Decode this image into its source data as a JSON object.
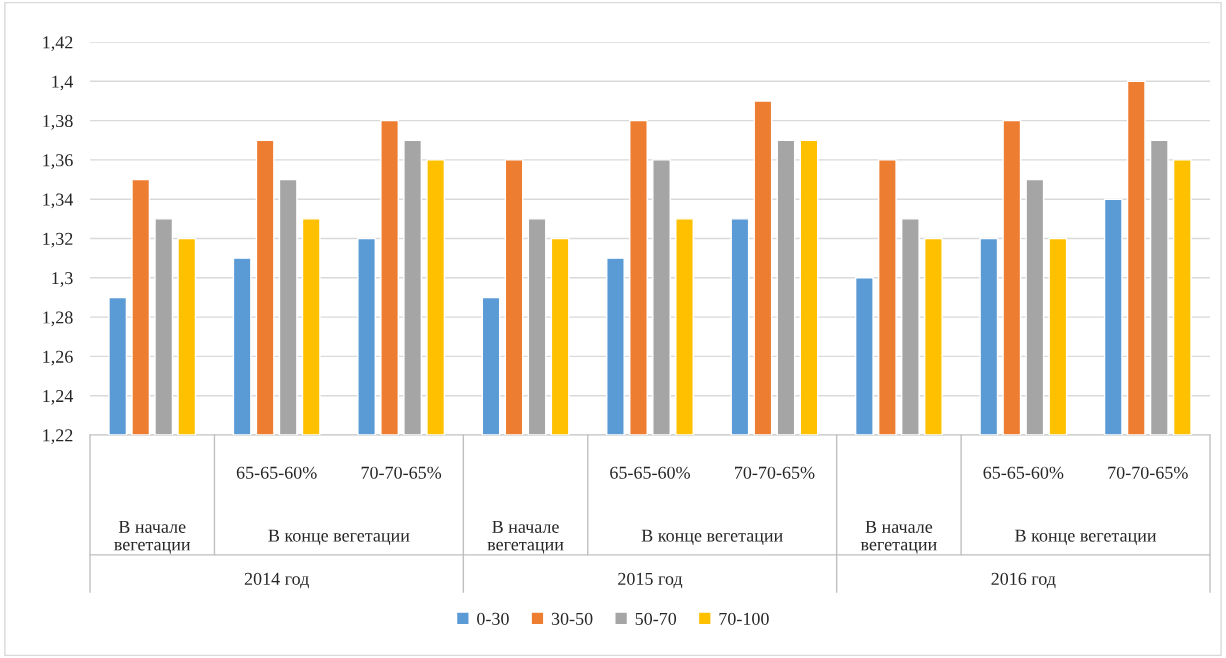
{
  "chart_data": {
    "type": "bar",
    "categories": [
      null,
      "65-65-60%",
      "70-70-65%",
      null,
      "65-65-60%",
      "70-70-65%",
      null,
      "65-65-60%",
      "70-70-65%"
    ],
    "series": [
      {
        "name": "0-30",
        "color": "#5b9bd5",
        "values": [
          1.29,
          1.31,
          1.32,
          1.29,
          1.31,
          1.33,
          1.3,
          1.32,
          1.34
        ]
      },
      {
        "name": "30-50",
        "color": "#ed7d31",
        "values": [
          1.35,
          1.37,
          1.38,
          1.36,
          1.38,
          1.39,
          1.36,
          1.38,
          1.4
        ]
      },
      {
        "name": "50-70",
        "color": "#a5a5a5",
        "values": [
          1.33,
          1.35,
          1.37,
          1.33,
          1.36,
          1.37,
          1.33,
          1.35,
          1.37
        ]
      },
      {
        "name": "70-100",
        "color": "#ffc000",
        "values": [
          1.32,
          1.33,
          1.36,
          1.32,
          1.33,
          1.37,
          1.32,
          1.32,
          1.36
        ]
      }
    ],
    "annotations": [
      "В начале\nвегетации",
      "В конце вегетации",
      "2014 год",
      "В начале\nвегетации",
      "В конце вегетации",
      "2015 год",
      "В начале\nвегетации",
      "В конце вегетации",
      "2016 год"
    ],
    "ylim": [
      1.22,
      1.42
    ],
    "yticks": [
      {
        "value": 1.22,
        "label": "1,22"
      },
      {
        "value": 1.24,
        "label": "1,24"
      },
      {
        "value": 1.26,
        "label": "1,26"
      },
      {
        "value": 1.28,
        "label": "1,28"
      },
      {
        "value": 1.3,
        "label": "1,3"
      },
      {
        "value": 1.32,
        "label": "1,32"
      },
      {
        "value": 1.34,
        "label": "1,34"
      },
      {
        "value": 1.36,
        "label": "1,36"
      },
      {
        "value": 1.38,
        "label": "1,38"
      },
      {
        "value": 1.4,
        "label": "1,4"
      },
      {
        "value": 1.42,
        "label": "1,42"
      }
    ],
    "grid": "y",
    "legend": "bottom"
  }
}
